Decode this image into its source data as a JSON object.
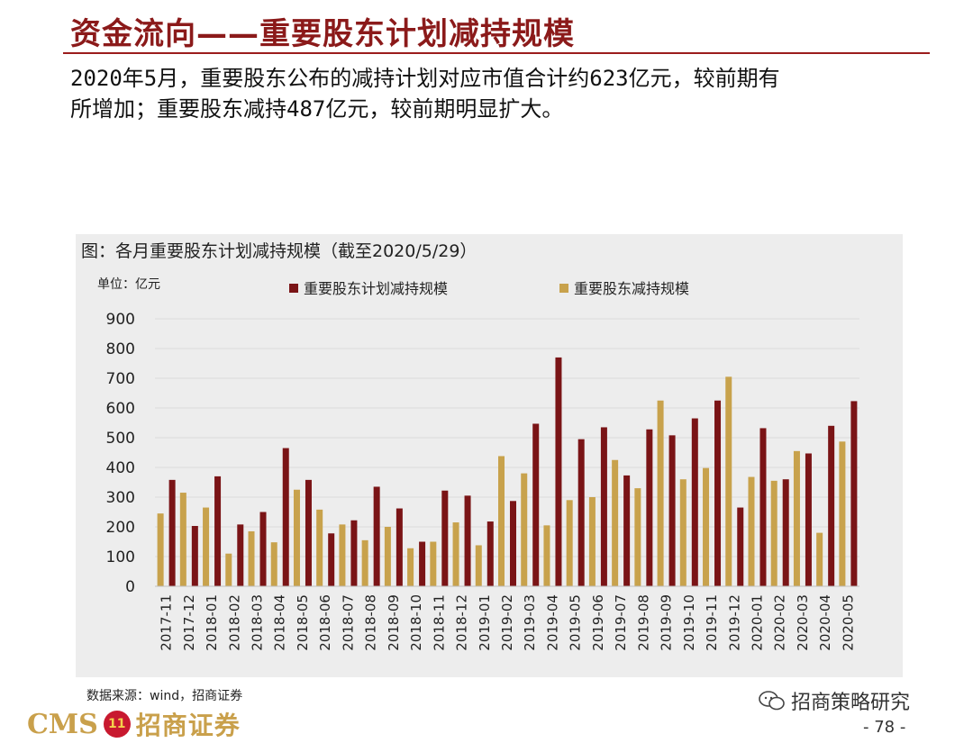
{
  "header": {
    "title": "资金流向——重要股东计划减持规模",
    "summary_line1": "2020年5月，重要股东公布的减持计划对应市值合计约623亿元，较前期有",
    "summary_line2": "所增加；重要股东减持487亿元，较前期明显扩大。"
  },
  "footer": {
    "source": "数据来源：wind，招商证券",
    "logo_cms": "CMS",
    "logo_badge": "11",
    "logo_cn": "招商证券",
    "wechat_label": "招商策略研究",
    "page": "- 78 -"
  },
  "colors": {
    "plan": "#7a1416",
    "actual": "#c8a24c",
    "grid": "#dcdcdc",
    "panel": "#ededed"
  },
  "chart_data": {
    "type": "bar",
    "title": "图：各月重要股东计划减持规模（截至2020/5/29）",
    "unit_label": "单位：亿元",
    "ylim": [
      0,
      900
    ],
    "yticks": [
      0,
      100,
      200,
      300,
      400,
      500,
      600,
      700,
      800,
      900
    ],
    "grid": true,
    "legend_position": "top",
    "categories": [
      "2017-11",
      "2017-12",
      "2018-01",
      "2018-02",
      "2018-03",
      "2018-04",
      "2018-05",
      "2018-06",
      "2018-07",
      "2018-08",
      "2018-09",
      "2018-10",
      "2018-11",
      "2018-12",
      "2019-01",
      "2019-02",
      "2019-03",
      "2019-04",
      "2019-05",
      "2019-06",
      "2019-07",
      "2019-08",
      "2019-09",
      "2019-10",
      "2019-11",
      "2019-12",
      "2020-01",
      "2020-02",
      "2020-03",
      "2020-04",
      "2020-05"
    ],
    "series": [
      {
        "name": "重要股东减持规模",
        "color": "#c8a24c",
        "values": [
          245,
          315,
          265,
          110,
          185,
          148,
          325,
          258,
          208,
          155,
          200,
          128,
          150,
          215,
          138,
          438,
          380,
          205,
          290,
          300,
          425,
          330,
          625,
          360,
          398,
          705,
          368,
          355,
          455,
          180,
          487
        ]
      },
      {
        "name": "重要股东计划减持规模",
        "color": "#7a1416",
        "values": [
          358,
          203,
          370,
          208,
          250,
          465,
          358,
          178,
          222,
          335,
          262,
          150,
          322,
          305,
          218,
          287,
          547,
          770,
          495,
          535,
          373,
          528,
          508,
          565,
          625,
          265,
          532,
          360,
          447,
          540,
          623
        ]
      }
    ]
  }
}
